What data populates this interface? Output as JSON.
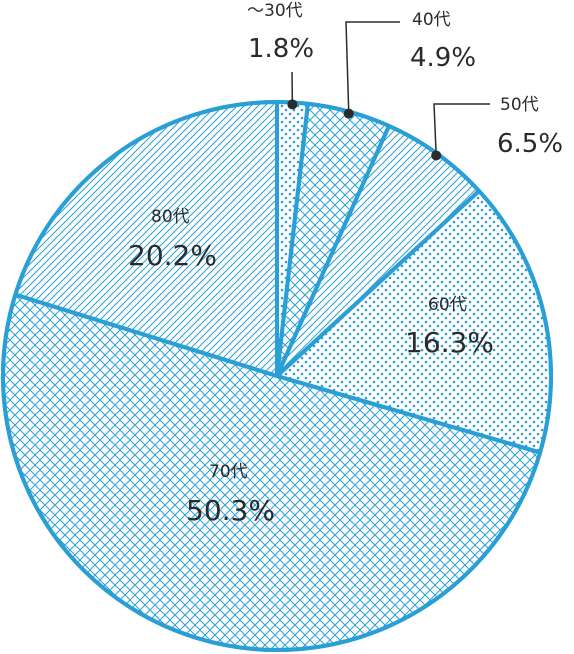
{
  "chart_data": {
    "type": "pie",
    "start_angle_deg": 0,
    "direction": "clockwise",
    "slices": [
      {
        "category": "～30代",
        "value": 1.8,
        "label": "1.8%",
        "pattern": "dots"
      },
      {
        "category": "40代",
        "value": 4.9,
        "label": "4.9%",
        "pattern": "crosshatch"
      },
      {
        "category": "50代",
        "value": 6.5,
        "label": "6.5%",
        "pattern": "diagonal"
      },
      {
        "category": "60代",
        "value": 16.3,
        "label": "16.3%",
        "pattern": "dots"
      },
      {
        "category": "70代",
        "value": 50.3,
        "label": "50.3%",
        "pattern": "crosshatch"
      },
      {
        "category": "80代",
        "value": 20.2,
        "label": "20.2%",
        "pattern": "diagonal"
      }
    ],
    "legend": "none",
    "colors": {
      "accent": "#2a9fd6",
      "text": "#2b2b2b",
      "background": "#ffffff"
    }
  }
}
